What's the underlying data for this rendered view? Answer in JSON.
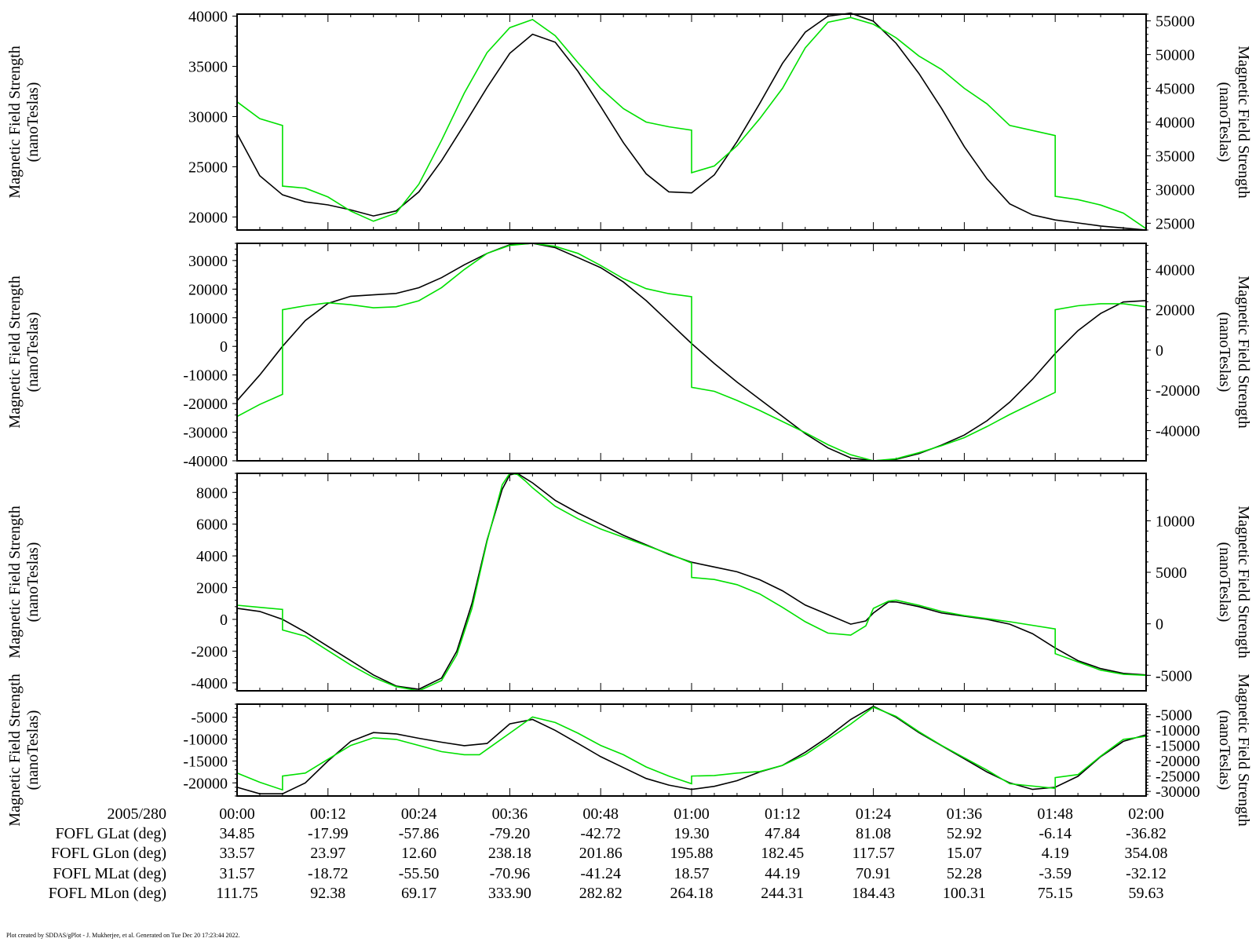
{
  "colors": {
    "black_trace": "#000000",
    "green_trace": "#00e000",
    "axis": "#000000",
    "background": "#ffffff"
  },
  "chart_data": [
    {
      "type": "line",
      "panel": 1,
      "ylabel_left": [
        "Magnetic Field Strength",
        "(nanoTeslas)"
      ],
      "ylabel_right": [
        "Magnetic Field Strength",
        "(nanoTeslas)"
      ],
      "ylim_left": [
        18700,
        40200
      ],
      "left_ticks": [
        20000,
        25000,
        30000,
        35000,
        40000
      ],
      "ylim_right": [
        24000,
        56000
      ],
      "right_ticks": [
        25000,
        30000,
        35000,
        40000,
        45000,
        50000,
        55000
      ],
      "series": [
        {
          "axis": "left",
          "color": "black",
          "x": [
            0,
            3,
            6,
            9,
            12,
            15,
            18,
            21,
            24,
            27,
            30,
            33,
            36,
            39,
            42,
            45,
            48,
            51,
            54,
            57,
            60,
            63,
            66,
            69,
            72,
            75,
            78,
            81,
            84,
            87,
            90,
            93,
            96,
            99,
            102,
            105,
            108,
            111,
            114,
            117,
            120
          ],
          "y": [
            28300,
            24100,
            22200,
            21500,
            21200,
            20700,
            20100,
            20600,
            22500,
            25600,
            29200,
            32900,
            36300,
            38200,
            37400,
            34500,
            31000,
            27400,
            24300,
            22500,
            22400,
            24200,
            27500,
            31300,
            35300,
            38400,
            40000,
            40300,
            39500,
            37300,
            34300,
            30800,
            27000,
            23800,
            21300,
            20200,
            19700,
            19400,
            19100,
            18900,
            18700
          ]
        },
        {
          "axis": "right",
          "color": "green",
          "x": [
            0,
            3,
            6,
            6,
            9,
            12,
            15,
            18,
            21,
            24,
            27,
            30,
            33,
            36,
            39,
            42,
            45,
            48,
            51,
            54,
            57,
            60,
            60,
            63,
            66,
            69,
            72,
            75,
            78,
            81,
            84,
            87,
            90,
            93,
            96,
            99,
            102,
            108,
            108,
            111,
            114,
            117,
            120
          ],
          "y": [
            43000,
            40500,
            39500,
            30500,
            30200,
            28900,
            26800,
            25300,
            26500,
            30800,
            37300,
            44300,
            50300,
            54000,
            55200,
            52800,
            48800,
            45000,
            42000,
            40000,
            39300,
            38800,
            32500,
            33500,
            36500,
            40500,
            45000,
            51000,
            54800,
            55500,
            54500,
            52500,
            49800,
            47800,
            45000,
            42700,
            39500,
            38000,
            29000,
            28500,
            27700,
            26500,
            24200
          ]
        }
      ]
    },
    {
      "type": "line",
      "panel": 2,
      "ylabel_left": [
        "Magnetic Field Strength",
        "(nanoTeslas)"
      ],
      "ylabel_right": [
        "Magnetic Field Strength",
        "(nanoTeslas)"
      ],
      "ylim_left": [
        -40000,
        36000
      ],
      "left_ticks": [
        -40000,
        -30000,
        -20000,
        -10000,
        0,
        10000,
        20000,
        30000
      ],
      "ylim_right": [
        -55000,
        53000
      ],
      "right_ticks": [
        -40000,
        -20000,
        0,
        20000,
        40000
      ],
      "series": [
        {
          "axis": "left",
          "color": "black",
          "x": [
            0,
            3,
            6,
            9,
            12,
            15,
            18,
            21,
            24,
            27,
            30,
            33,
            36,
            39,
            42,
            45,
            48,
            51,
            54,
            57,
            60,
            63,
            66,
            69,
            72,
            75,
            78,
            81,
            84,
            87,
            90,
            93,
            96,
            99,
            102,
            105,
            108,
            111,
            114,
            117,
            120
          ],
          "y": [
            -19000,
            -10000,
            0,
            9000,
            15000,
            17500,
            18000,
            18500,
            20500,
            24000,
            28500,
            32500,
            35500,
            36000,
            34500,
            31000,
            27500,
            22500,
            16000,
            8500,
            1000,
            -6000,
            -12500,
            -18500,
            -24500,
            -30500,
            -35500,
            -39000,
            -40000,
            -39500,
            -37500,
            -34500,
            -31000,
            -26000,
            -19500,
            -11500,
            -2500,
            5500,
            11500,
            15500,
            16000
          ]
        },
        {
          "axis": "right",
          "color": "green",
          "x": [
            0,
            3,
            6,
            6,
            9,
            12,
            15,
            18,
            21,
            24,
            27,
            30,
            33,
            36,
            39,
            42,
            45,
            48,
            51,
            54,
            57,
            60,
            60,
            63,
            66,
            69,
            72,
            75,
            78,
            81,
            84,
            87,
            90,
            93,
            96,
            99,
            102,
            108,
            108,
            111,
            114,
            117,
            120
          ],
          "y": [
            -33000,
            -27000,
            -22000,
            20000,
            22000,
            23500,
            22500,
            21000,
            21500,
            24500,
            31000,
            40000,
            48000,
            52000,
            53000,
            51500,
            48000,
            42000,
            35500,
            30500,
            28000,
            26500,
            -18500,
            -20500,
            -25000,
            -30000,
            -35500,
            -41000,
            -47000,
            -52000,
            -55000,
            -54000,
            -51000,
            -47500,
            -43500,
            -38000,
            -32000,
            -21000,
            20000,
            22000,
            23000,
            23000,
            21500
          ]
        }
      ]
    },
    {
      "type": "line",
      "panel": 3,
      "ylabel_left": [
        "Magnetic Field Strength",
        "(nanoTeslas)"
      ],
      "ylabel_right": [
        "Magnetic Field Strength",
        "(nanoTeslas)"
      ],
      "ylim_left": [
        -4500,
        9200
      ],
      "left_ticks": [
        -4000,
        -2000,
        0,
        2000,
        4000,
        6000,
        8000
      ],
      "ylim_right": [
        -6500,
        14600
      ],
      "right_ticks": [
        -5000,
        0,
        5000,
        10000
      ],
      "series": [
        {
          "axis": "left",
          "color": "black",
          "x": [
            0,
            3,
            6,
            9,
            12,
            15,
            18,
            21,
            24,
            27,
            29,
            31,
            33,
            35,
            36,
            37,
            38,
            39,
            42,
            45,
            48,
            51,
            54,
            57,
            60,
            63,
            66,
            69,
            72,
            75,
            78,
            81,
            83,
            84,
            86,
            87,
            90,
            93,
            96,
            99,
            102,
            105,
            108,
            111,
            114,
            117,
            120
          ],
          "y": [
            700,
            500,
            0,
            -800,
            -1700,
            -2600,
            -3500,
            -4200,
            -4400,
            -3700,
            -2000,
            1000,
            5000,
            8200,
            9100,
            9200,
            8900,
            8600,
            7500,
            6700,
            6000,
            5300,
            4700,
            4100,
            3600,
            3300,
            3000,
            2500,
            1800,
            900,
            300,
            -300,
            -100,
            400,
            1100,
            1100,
            800,
            400,
            200,
            0,
            -300,
            -900,
            -1800,
            -2600,
            -3100,
            -3400,
            -3500
          ]
        },
        {
          "axis": "right",
          "color": "green",
          "x": [
            0,
            3,
            6,
            6,
            9,
            12,
            15,
            18,
            21,
            24,
            27,
            29,
            31,
            33,
            35,
            36,
            37,
            38,
            39,
            42,
            45,
            48,
            51,
            54,
            57,
            60,
            60,
            63,
            66,
            69,
            72,
            75,
            78,
            81,
            83,
            84,
            86,
            87,
            90,
            93,
            96,
            99,
            102,
            108,
            108,
            111,
            114,
            117,
            120
          ],
          "y": [
            1800,
            1600,
            1400,
            -600,
            -1200,
            -2600,
            -4000,
            -5200,
            -6100,
            -6500,
            -5500,
            -3000,
            1500,
            8000,
            13500,
            14600,
            14500,
            13900,
            13200,
            11400,
            10200,
            9200,
            8400,
            7600,
            6800,
            5900,
            4500,
            4300,
            3800,
            2900,
            1600,
            200,
            -900,
            -1100,
            -200,
            1500,
            2200,
            2300,
            1800,
            1200,
            800,
            500,
            200,
            -500,
            -2900,
            -3700,
            -4500,
            -4900,
            -5000
          ]
        }
      ]
    },
    {
      "type": "line",
      "panel": 4,
      "ylabel_left": [
        "Magnetic Field Strength",
        "(nanoTeslas)"
      ],
      "ylabel_right": [
        "Magnetic Field Strength",
        "(nanoTeslas)"
      ],
      "ylim_left": [
        -23000,
        -2000
      ],
      "left_ticks": [
        -20000,
        -15000,
        -10000,
        -5000
      ],
      "ylim_right": [
        -31500,
        -1500
      ],
      "right_ticks": [
        -30000,
        -25000,
        -20000,
        -15000,
        -10000,
        -5000
      ],
      "series": [
        {
          "axis": "left",
          "color": "black",
          "x": [
            0,
            3,
            6,
            9,
            12,
            15,
            18,
            21,
            24,
            27,
            30,
            33,
            36,
            39,
            42,
            45,
            48,
            51,
            54,
            57,
            60,
            63,
            66,
            69,
            72,
            75,
            78,
            81,
            84,
            87,
            90,
            93,
            96,
            99,
            102,
            105,
            108,
            111,
            114,
            117,
            120
          ],
          "y": [
            -21000,
            -22500,
            -22500,
            -20000,
            -15000,
            -10500,
            -8500,
            -8800,
            -9800,
            -10700,
            -11500,
            -11000,
            -6500,
            -5500,
            -8000,
            -11000,
            -14000,
            -16500,
            -19000,
            -20500,
            -21500,
            -20800,
            -19500,
            -17500,
            -16000,
            -13000,
            -9500,
            -5500,
            -2500,
            -5000,
            -8500,
            -11500,
            -14500,
            -17500,
            -20000,
            -21500,
            -21000,
            -18500,
            -14000,
            -10500,
            -9000
          ]
        },
        {
          "axis": "right",
          "color": "green",
          "x": [
            0,
            3,
            6,
            6,
            9,
            12,
            15,
            18,
            21,
            24,
            27,
            30,
            32,
            36,
            39,
            42,
            45,
            48,
            51,
            54,
            57,
            60,
            60,
            63,
            66,
            69,
            72,
            75,
            78,
            81,
            84,
            87,
            90,
            93,
            96,
            99,
            102,
            108,
            108,
            111,
            114,
            117,
            120
          ],
          "y": [
            -24000,
            -27000,
            -29500,
            -25000,
            -24000,
            -19500,
            -15000,
            -12500,
            -13000,
            -15000,
            -17000,
            -18000,
            -18000,
            -11000,
            -5700,
            -7500,
            -11000,
            -15000,
            -18000,
            -22000,
            -25000,
            -27500,
            -25000,
            -24800,
            -24000,
            -23500,
            -21500,
            -18000,
            -13000,
            -8000,
            -2500,
            -5500,
            -10500,
            -15000,
            -19000,
            -23000,
            -27500,
            -29000,
            -25500,
            -24500,
            -18500,
            -13000,
            -12000
          ]
        }
      ]
    }
  ],
  "x_axis": {
    "range_minutes": [
      0,
      120
    ],
    "date_label": "2005/280",
    "tick_labels": [
      "00:00",
      "00:12",
      "00:24",
      "00:36",
      "00:48",
      "01:00",
      "01:12",
      "01:24",
      "01:36",
      "01:48",
      "02:00"
    ]
  },
  "ephemeris": [
    {
      "label": "FOFL GLat (deg)",
      "values": [
        "34.85",
        "-17.99",
        "-57.86",
        "-79.20",
        "-42.72",
        "19.30",
        "47.84",
        "81.08",
        "52.92",
        "-6.14",
        "-36.82"
      ]
    },
    {
      "label": "FOFL GLon (deg)",
      "values": [
        "33.57",
        "23.97",
        "12.60",
        "238.18",
        "201.86",
        "195.88",
        "182.45",
        "117.57",
        "15.07",
        "4.19",
        "354.08"
      ]
    },
    {
      "label": "FOFL MLat (deg)",
      "values": [
        "31.57",
        "-18.72",
        "-55.50",
        "-70.96",
        "-41.24",
        "18.57",
        "44.19",
        "70.91",
        "52.28",
        "-3.59",
        "-32.12"
      ]
    },
    {
      "label": "FOFL MLon (deg)",
      "values": [
        "111.75",
        "92.38",
        "69.17",
        "333.90",
        "282.82",
        "264.18",
        "244.31",
        "184.43",
        "100.31",
        "75.15",
        "59.63"
      ]
    }
  ],
  "footer": "Plot created by SDDAS/gPlot - J. Mukherjee, et al.  Generated on Tue Dec 20 17:23:44 2022."
}
